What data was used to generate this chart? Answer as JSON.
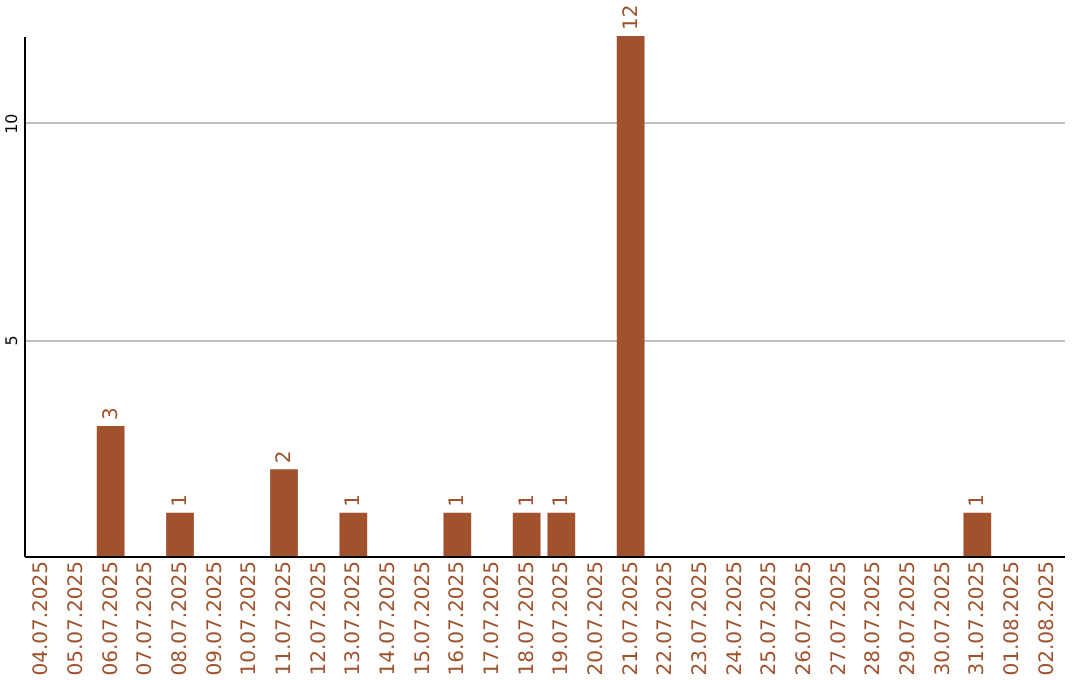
{
  "chart_data": {
    "type": "bar",
    "categories": [
      "04.07.2025",
      "05.07.2025",
      "06.07.2025",
      "07.07.2025",
      "08.07.2025",
      "09.07.2025",
      "10.07.2025",
      "11.07.2025",
      "12.07.2025",
      "13.07.2025",
      "14.07.2025",
      "15.07.2025",
      "16.07.2025",
      "17.07.2025",
      "18.07.2025",
      "19.07.2025",
      "20.07.2025",
      "21.07.2025",
      "22.07.2025",
      "23.07.2025",
      "24.07.2025",
      "25.07.2025",
      "26.07.2025",
      "27.07.2025",
      "28.07.2025",
      "29.07.2025",
      "30.07.2025",
      "31.07.2025",
      "01.08.2025",
      "02.08.2025"
    ],
    "values": [
      0,
      0,
      3,
      0,
      1,
      0,
      0,
      2,
      0,
      1,
      0,
      0,
      1,
      0,
      1,
      1,
      0,
      12,
      0,
      0,
      0,
      0,
      0,
      0,
      0,
      0,
      0,
      1,
      0,
      0
    ],
    "value_labels": [
      null,
      null,
      "3",
      null,
      "1",
      null,
      null,
      "2",
      null,
      "1",
      null,
      null,
      "1",
      null,
      "1",
      "1",
      null,
      "12",
      null,
      null,
      null,
      null,
      null,
      null,
      null,
      null,
      null,
      "1",
      null,
      null
    ],
    "color": "#a0522d",
    "ylim": [
      0,
      12
    ],
    "yticks": [
      5,
      10
    ],
    "grid": "y"
  }
}
